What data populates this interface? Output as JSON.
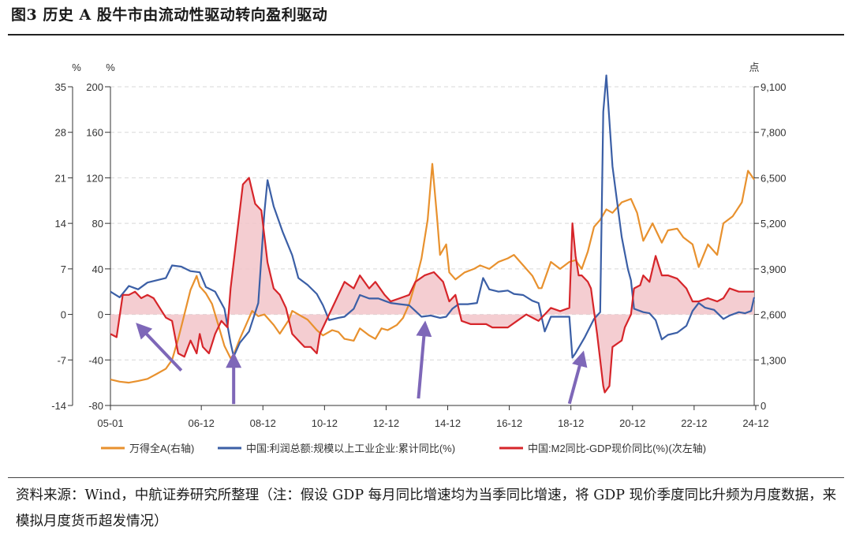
{
  "figure": {
    "title": "图3 历史 A 股牛市由流动性驱动转向盈利驱动",
    "source_note": "资料来源：Wind，中航证券研究所整理（注：假设 GDP 每月同比增速均为当季同比增速，将 GDP 现价季度同比升频为月度数据，来模拟月度货币超发情况）"
  },
  "colors": {
    "orange": "#E8912E",
    "blue": "#3B5FA6",
    "red": "#D6252A",
    "fill": "#F2C4C9",
    "grid": "#d8d8d8"
  },
  "chart_data": {
    "type": "line",
    "x_ticks": [
      "05-01",
      "06-12",
      "08-12",
      "10-12",
      "12-12",
      "14-12",
      "16-12",
      "18-12",
      "20-12",
      "22-12",
      "24-12"
    ],
    "x_range": [
      2005.0,
      2025.9
    ],
    "axes": {
      "left_outer": {
        "unit": "%",
        "ticks": [
          35,
          28,
          21,
          14,
          7,
          0,
          -7,
          -14
        ],
        "range": [
          -14,
          35
        ]
      },
      "left_inner": {
        "unit": "%",
        "ticks": [
          200,
          160,
          120,
          80,
          40,
          0,
          -40,
          -80
        ],
        "range": [
          -80,
          200
        ]
      },
      "right": {
        "unit": "点",
        "ticks": [
          "9,100",
          "7,800",
          "6,500",
          "5,200",
          "3,900",
          "2,600",
          "1,300",
          "0"
        ],
        "range": [
          0,
          9100
        ]
      }
    },
    "legend": [
      "万得全A(右轴)",
      "中国:利润总额:规模以上工业企业:累计同比(%)",
      "中国:M2同比-GDP现价同比(%)(次左轴)"
    ],
    "series": [
      {
        "name": "万得全A(右轴)",
        "axis": "right",
        "points": [
          [
            2005.0,
            740
          ],
          [
            2005.3,
            680
          ],
          [
            2005.6,
            650
          ],
          [
            2005.9,
            700
          ],
          [
            2006.2,
            760
          ],
          [
            2006.5,
            900
          ],
          [
            2006.8,
            1050
          ],
          [
            2007.0,
            1300
          ],
          [
            2007.2,
            1900
          ],
          [
            2007.4,
            2600
          ],
          [
            2007.6,
            3300
          ],
          [
            2007.8,
            3700
          ],
          [
            2007.9,
            3400
          ],
          [
            2008.1,
            3200
          ],
          [
            2008.3,
            2900
          ],
          [
            2008.5,
            2300
          ],
          [
            2008.7,
            1700
          ],
          [
            2008.9,
            1350
          ],
          [
            2009.0,
            1450
          ],
          [
            2009.2,
            1900
          ],
          [
            2009.4,
            2300
          ],
          [
            2009.6,
            2700
          ],
          [
            2009.8,
            2550
          ],
          [
            2010.0,
            2600
          ],
          [
            2010.3,
            2300
          ],
          [
            2010.5,
            2050
          ],
          [
            2010.8,
            2450
          ],
          [
            2010.9,
            2700
          ],
          [
            2011.1,
            2600
          ],
          [
            2011.4,
            2450
          ],
          [
            2011.7,
            2150
          ],
          [
            2011.9,
            2000
          ],
          [
            2012.2,
            2150
          ],
          [
            2012.4,
            2100
          ],
          [
            2012.6,
            1900
          ],
          [
            2012.9,
            1850
          ],
          [
            2013.1,
            2200
          ],
          [
            2013.4,
            2000
          ],
          [
            2013.6,
            1900
          ],
          [
            2013.8,
            2200
          ],
          [
            2014.0,
            2150
          ],
          [
            2014.3,
            2300
          ],
          [
            2014.5,
            2500
          ],
          [
            2014.7,
            2900
          ],
          [
            2014.9,
            3500
          ],
          [
            2015.1,
            4200
          ],
          [
            2015.3,
            5300
          ],
          [
            2015.45,
            6900
          ],
          [
            2015.6,
            5400
          ],
          [
            2015.7,
            4300
          ],
          [
            2015.9,
            4600
          ],
          [
            2016.0,
            3800
          ],
          [
            2016.2,
            3600
          ],
          [
            2016.5,
            3800
          ],
          [
            2016.8,
            3900
          ],
          [
            2017.0,
            4000
          ],
          [
            2017.3,
            3900
          ],
          [
            2017.6,
            4100
          ],
          [
            2017.9,
            4200
          ],
          [
            2018.1,
            4300
          ],
          [
            2018.4,
            4000
          ],
          [
            2018.7,
            3700
          ],
          [
            2018.9,
            3350
          ],
          [
            2019.0,
            3350
          ],
          [
            2019.3,
            4100
          ],
          [
            2019.6,
            3900
          ],
          [
            2019.9,
            4100
          ],
          [
            2020.1,
            4150
          ],
          [
            2020.3,
            3900
          ],
          [
            2020.5,
            4400
          ],
          [
            2020.7,
            5100
          ],
          [
            2020.9,
            5300
          ],
          [
            2021.1,
            5600
          ],
          [
            2021.3,
            5500
          ],
          [
            2021.6,
            5800
          ],
          [
            2021.9,
            5900
          ],
          [
            2022.1,
            5500
          ],
          [
            2022.3,
            4700
          ],
          [
            2022.6,
            5200
          ],
          [
            2022.9,
            4650
          ],
          [
            2023.1,
            5000
          ],
          [
            2023.4,
            5050
          ],
          [
            2023.6,
            4800
          ],
          [
            2023.9,
            4600
          ],
          [
            2024.1,
            3950
          ],
          [
            2024.4,
            4600
          ],
          [
            2024.7,
            4300
          ],
          [
            2024.9,
            5200
          ],
          [
            2025.2,
            5400
          ],
          [
            2025.5,
            5800
          ],
          [
            2025.7,
            6700
          ],
          [
            2025.9,
            6450
          ]
        ]
      },
      {
        "name": "中国:利润总额:规模以上工业企业:累计同比(%)",
        "axis": "left_inner",
        "points": [
          [
            2005.0,
            20
          ],
          [
            2005.3,
            15
          ],
          [
            2005.6,
            25
          ],
          [
            2005.9,
            22
          ],
          [
            2006.2,
            28
          ],
          [
            2006.5,
            30
          ],
          [
            2006.8,
            32
          ],
          [
            2007.0,
            43
          ],
          [
            2007.3,
            42
          ],
          [
            2007.6,
            38
          ],
          [
            2007.9,
            37
          ],
          [
            2008.1,
            24
          ],
          [
            2008.4,
            20
          ],
          [
            2008.7,
            5
          ],
          [
            2008.9,
            -25
          ],
          [
            2009.0,
            -37
          ],
          [
            2009.2,
            -25
          ],
          [
            2009.5,
            -15
          ],
          [
            2009.8,
            10
          ],
          [
            2010.0,
            90
          ],
          [
            2010.1,
            118
          ],
          [
            2010.3,
            95
          ],
          [
            2010.6,
            72
          ],
          [
            2010.9,
            52
          ],
          [
            2011.1,
            32
          ],
          [
            2011.4,
            26
          ],
          [
            2011.7,
            18
          ],
          [
            2011.9,
            8
          ],
          [
            2012.1,
            -5
          ],
          [
            2012.4,
            -3
          ],
          [
            2012.6,
            -2
          ],
          [
            2012.9,
            5
          ],
          [
            2013.1,
            17
          ],
          [
            2013.4,
            14
          ],
          [
            2013.7,
            14
          ],
          [
            2013.9,
            12
          ],
          [
            2014.1,
            10
          ],
          [
            2014.4,
            9
          ],
          [
            2014.7,
            8
          ],
          [
            2014.9,
            3
          ],
          [
            2015.1,
            -2
          ],
          [
            2015.4,
            -1
          ],
          [
            2015.7,
            -3
          ],
          [
            2015.9,
            -2
          ],
          [
            2016.1,
            5
          ],
          [
            2016.3,
            9
          ],
          [
            2016.6,
            9
          ],
          [
            2016.9,
            10
          ],
          [
            2017.1,
            32
          ],
          [
            2017.3,
            22
          ],
          [
            2017.6,
            20
          ],
          [
            2017.9,
            21
          ],
          [
            2018.1,
            18
          ],
          [
            2018.4,
            17
          ],
          [
            2018.7,
            12
          ],
          [
            2018.9,
            10
          ],
          [
            2019.1,
            -15
          ],
          [
            2019.3,
            -2
          ],
          [
            2019.6,
            -2
          ],
          [
            2019.9,
            -2
          ],
          [
            2020.0,
            -38
          ],
          [
            2020.1,
            -34
          ],
          [
            2020.4,
            -20
          ],
          [
            2020.7,
            -4
          ],
          [
            2020.9,
            2
          ],
          [
            2021.0,
            178
          ],
          [
            2021.1,
            210
          ],
          [
            2021.3,
            130
          ],
          [
            2021.6,
            68
          ],
          [
            2021.8,
            40
          ],
          [
            2021.9,
            30
          ],
          [
            2022.0,
            5
          ],
          [
            2022.3,
            2
          ],
          [
            2022.5,
            1
          ],
          [
            2022.7,
            -5
          ],
          [
            2022.9,
            -22
          ],
          [
            2023.1,
            -18
          ],
          [
            2023.4,
            -16
          ],
          [
            2023.7,
            -10
          ],
          [
            2023.9,
            3
          ],
          [
            2024.1,
            10
          ],
          [
            2024.3,
            6
          ],
          [
            2024.6,
            4
          ],
          [
            2024.9,
            -4
          ],
          [
            2025.1,
            -1
          ],
          [
            2025.4,
            2
          ],
          [
            2025.6,
            1
          ],
          [
            2025.8,
            3
          ],
          [
            2025.9,
            15
          ]
        ]
      },
      {
        "name": "中国:M2同比-GDP现价同比(%)(次左轴)",
        "axis": "left_outer",
        "points": [
          [
            2005.0,
            -3
          ],
          [
            2005.2,
            -3.5
          ],
          [
            2005.4,
            3
          ],
          [
            2005.6,
            3
          ],
          [
            2005.8,
            3.5
          ],
          [
            2006.0,
            2.5
          ],
          [
            2006.2,
            3
          ],
          [
            2006.4,
            2.5
          ],
          [
            2006.6,
            1
          ],
          [
            2006.8,
            -0.5
          ],
          [
            2007.0,
            -1
          ],
          [
            2007.2,
            -6
          ],
          [
            2007.4,
            -6.5
          ],
          [
            2007.6,
            -4
          ],
          [
            2007.8,
            -6
          ],
          [
            2007.9,
            -3
          ],
          [
            2008.0,
            -5
          ],
          [
            2008.2,
            -6
          ],
          [
            2008.4,
            -3
          ],
          [
            2008.6,
            -1
          ],
          [
            2008.8,
            -2
          ],
          [
            2008.9,
            4
          ],
          [
            2009.1,
            12
          ],
          [
            2009.3,
            20
          ],
          [
            2009.5,
            21
          ],
          [
            2009.7,
            17
          ],
          [
            2009.9,
            16
          ],
          [
            2010.1,
            8
          ],
          [
            2010.3,
            4
          ],
          [
            2010.5,
            3
          ],
          [
            2010.7,
            1
          ],
          [
            2010.9,
            -3
          ],
          [
            2011.1,
            -4
          ],
          [
            2011.3,
            -5
          ],
          [
            2011.5,
            -5
          ],
          [
            2011.7,
            -6
          ],
          [
            2011.8,
            -3
          ],
          [
            2011.9,
            -2
          ],
          [
            2012.1,
            0
          ],
          [
            2012.3,
            2
          ],
          [
            2012.6,
            5
          ],
          [
            2012.9,
            4
          ],
          [
            2013.1,
            6
          ],
          [
            2013.4,
            4
          ],
          [
            2013.6,
            5
          ],
          [
            2013.9,
            3
          ],
          [
            2014.1,
            2
          ],
          [
            2014.4,
            2.5
          ],
          [
            2014.7,
            3
          ],
          [
            2014.9,
            5
          ],
          [
            2015.2,
            6
          ],
          [
            2015.5,
            6.5
          ],
          [
            2015.8,
            5
          ],
          [
            2016.0,
            2
          ],
          [
            2016.2,
            3
          ],
          [
            2016.4,
            -1
          ],
          [
            2016.7,
            -1.5
          ],
          [
            2016.9,
            -1.5
          ],
          [
            2017.2,
            -1.5
          ],
          [
            2017.4,
            -2
          ],
          [
            2017.7,
            -2
          ],
          [
            2017.9,
            -2
          ],
          [
            2018.2,
            -1
          ],
          [
            2018.5,
            0
          ],
          [
            2018.9,
            -1
          ],
          [
            2019.1,
            0
          ],
          [
            2019.3,
            1
          ],
          [
            2019.6,
            0.5
          ],
          [
            2019.9,
            1
          ],
          [
            2020.0,
            14
          ],
          [
            2020.1,
            9
          ],
          [
            2020.2,
            6
          ],
          [
            2020.3,
            6
          ],
          [
            2020.5,
            5
          ],
          [
            2020.6,
            4
          ],
          [
            2020.8,
            -3
          ],
          [
            2020.9,
            -7
          ],
          [
            2021.0,
            -11
          ],
          [
            2021.05,
            -12
          ],
          [
            2021.2,
            -11
          ],
          [
            2021.3,
            -5
          ],
          [
            2021.6,
            -4
          ],
          [
            2021.7,
            -2
          ],
          [
            2021.9,
            0
          ],
          [
            2022.0,
            4
          ],
          [
            2022.2,
            4.5
          ],
          [
            2022.3,
            6
          ],
          [
            2022.5,
            5
          ],
          [
            2022.7,
            9
          ],
          [
            2022.9,
            6
          ],
          [
            2023.1,
            6
          ],
          [
            2023.4,
            5.5
          ],
          [
            2023.7,
            4
          ],
          [
            2023.9,
            2
          ],
          [
            2024.1,
            2
          ],
          [
            2024.4,
            2.5
          ],
          [
            2024.7,
            2
          ],
          [
            2024.9,
            2.5
          ],
          [
            2025.1,
            4
          ],
          [
            2025.4,
            3.5
          ],
          [
            2025.7,
            3.5
          ],
          [
            2025.9,
            3.5
          ]
        ]
      }
    ],
    "annotations": [
      {
        "kind": "arrow",
        "label": "arrow-2005",
        "from": [
          2007.3,
          1000
        ],
        "to": [
          2006.0,
          2200
        ]
      },
      {
        "kind": "arrow",
        "label": "arrow-2008",
        "from": [
          2009.0,
          40
        ],
        "to": [
          2009.0,
          1300
        ]
      },
      {
        "kind": "arrow",
        "label": "arrow-2015",
        "from": [
          2015.0,
          200
        ],
        "to": [
          2015.2,
          2200
        ]
      },
      {
        "kind": "arrow",
        "label": "arrow-2020",
        "from": [
          2019.9,
          50
        ],
        "to": [
          2020.3,
          1350
        ]
      }
    ]
  }
}
